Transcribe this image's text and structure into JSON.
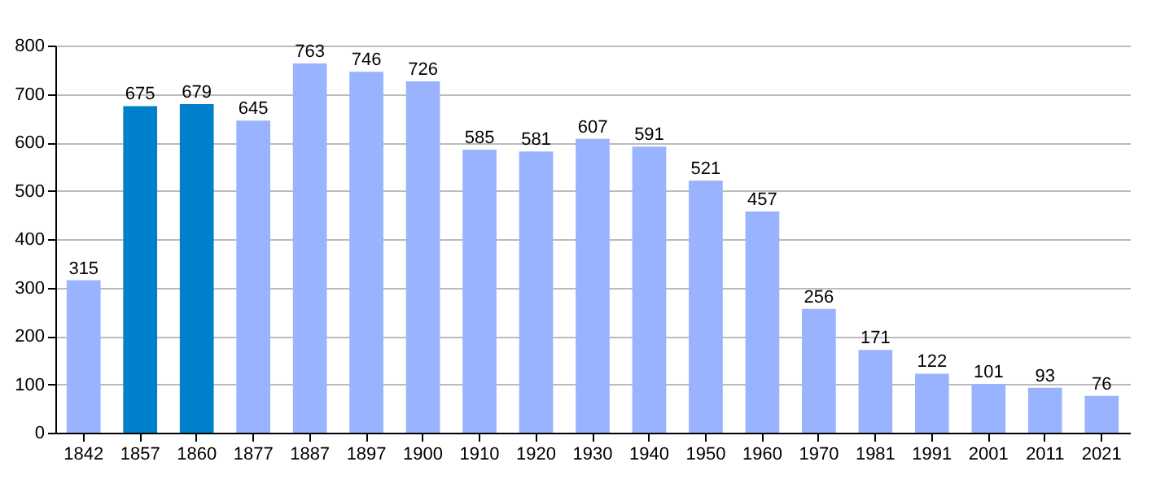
{
  "chart_data": {
    "type": "bar",
    "categories": [
      "1842",
      "1857",
      "1860",
      "1877",
      "1887",
      "1897",
      "1900",
      "1910",
      "1920",
      "1930",
      "1940",
      "1950",
      "1960",
      "1970",
      "1981",
      "1991",
      "2001",
      "2011",
      "2021"
    ],
    "values": [
      315,
      675,
      679,
      645,
      763,
      746,
      726,
      585,
      581,
      607,
      591,
      521,
      457,
      256,
      171,
      122,
      101,
      93,
      76
    ],
    "colors": [
      "#99b3ff",
      "#0080cc",
      "#0080cc",
      "#99b3ff",
      "#99b3ff",
      "#99b3ff",
      "#99b3ff",
      "#99b3ff",
      "#99b3ff",
      "#99b3ff",
      "#99b3ff",
      "#99b3ff",
      "#99b3ff",
      "#99b3ff",
      "#99b3ff",
      "#99b3ff",
      "#99b3ff",
      "#99b3ff",
      "#99b3ff"
    ],
    "ylim": [
      0,
      800
    ],
    "yticks": [
      0,
      100,
      200,
      300,
      400,
      500,
      600,
      700,
      800
    ],
    "grid": true,
    "data_labels": true
  }
}
